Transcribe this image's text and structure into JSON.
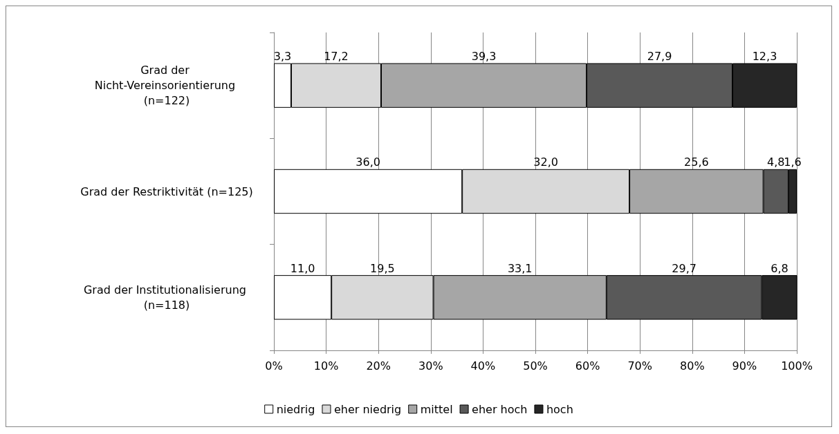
{
  "chart_data": {
    "type": "bar",
    "orientation": "horizontal",
    "stacked": true,
    "categories": [
      "Grad der Nicht-Vereinsorientierung (n=122)",
      "Grad der Restriktivität (n=125)",
      "Grad der Institutionalisierung (n=118)"
    ],
    "series": [
      {
        "name": "niedrig",
        "color": "#ffffff",
        "values": [
          3.3,
          36.0,
          11.0
        ],
        "value_labels": [
          "3,3",
          "36,0",
          "11,0"
        ]
      },
      {
        "name": "eher niedrig",
        "color": "#d9d9d9",
        "values": [
          17.2,
          32.0,
          19.5
        ],
        "value_labels": [
          "17,2",
          "32,0",
          "19,5"
        ]
      },
      {
        "name": "mittel",
        "color": "#a6a6a6",
        "values": [
          39.3,
          25.6,
          33.1
        ],
        "value_labels": [
          "39,3",
          "25,6",
          "33,1"
        ]
      },
      {
        "name": "eher hoch",
        "color": "#595959",
        "values": [
          27.9,
          4.8,
          29.7
        ],
        "value_labels": [
          "27,9",
          "4,8",
          "29,7"
        ]
      },
      {
        "name": "hoch",
        "color": "#262626",
        "values": [
          12.3,
          1.6,
          6.8
        ],
        "value_labels": [
          "12,3",
          "1,6",
          "6,8"
        ]
      }
    ],
    "xlim": [
      0,
      100
    ],
    "xticks": [
      {
        "value": 0,
        "label": "0%"
      },
      {
        "value": 10,
        "label": "10%"
      },
      {
        "value": 20,
        "label": "20%"
      },
      {
        "value": 30,
        "label": "30%"
      },
      {
        "value": 40,
        "label": "40%"
      },
      {
        "value": 50,
        "label": "50%"
      },
      {
        "value": 60,
        "label": "60%"
      },
      {
        "value": 70,
        "label": "70%"
      },
      {
        "value": 80,
        "label": "80%"
      },
      {
        "value": 90,
        "label": "90%"
      },
      {
        "value": 100,
        "label": "100%"
      }
    ],
    "grid": "x",
    "legend": "bottom"
  }
}
